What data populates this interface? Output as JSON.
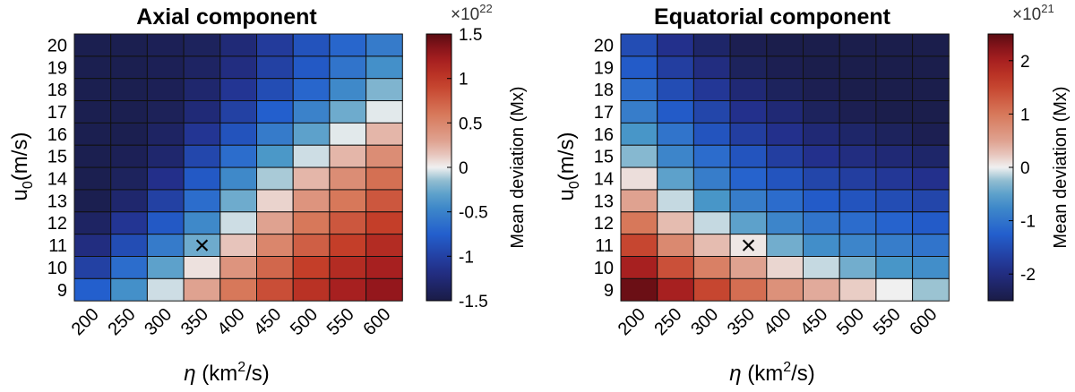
{
  "chart_data": [
    {
      "type": "heatmap",
      "title": "Axial component",
      "xlabel": "η (km²/s)",
      "xlabel_parts": {
        "symbol": "η",
        "unit_open": " (km",
        "unit_power": "2",
        "unit_close": "/s)"
      },
      "ylabel": "u0(m/s)",
      "ylabel_parts": {
        "base": "u",
        "sub": "0",
        "unit": "(m/s)"
      },
      "x_ticks": [
        "200",
        "250",
        "300",
        "350",
        "400",
        "450",
        "500",
        "550",
        "600"
      ],
      "y_ticks": [
        "20",
        "19",
        "18",
        "17",
        "16",
        "15",
        "14",
        "13",
        "12",
        "11",
        "10",
        "9"
      ],
      "colorbar": {
        "label": "Mean deviation (Mx)",
        "exponent_base": "×10",
        "exponent_power": "22",
        "vmin": -1.5,
        "vmax": 1.5,
        "ticks": [
          1.5,
          1,
          0.5,
          0,
          -0.5,
          -1,
          -1.5
        ],
        "tick_labels": [
          "1.5",
          "1",
          "0.5",
          "0",
          "-0.5",
          "-1",
          "-1.5"
        ]
      },
      "marker": {
        "symbol": "×",
        "x": "350",
        "y": "11"
      },
      "values": [
        [
          -1.45,
          -1.45,
          -1.42,
          -1.38,
          -1.25,
          -1.05,
          -0.85,
          -0.7,
          -0.55
        ],
        [
          -1.45,
          -1.45,
          -1.42,
          -1.35,
          -1.2,
          -1.0,
          -0.8,
          -0.6,
          -0.4
        ],
        [
          -1.45,
          -1.45,
          -1.42,
          -1.3,
          -1.1,
          -0.9,
          -0.7,
          -0.45,
          -0.2
        ],
        [
          -1.45,
          -1.45,
          -1.4,
          -1.25,
          -1.0,
          -0.75,
          -0.5,
          -0.25,
          -0.02
        ],
        [
          -1.45,
          -1.45,
          -1.35,
          -1.1,
          -0.85,
          -0.55,
          -0.3,
          -0.02,
          0.2
        ],
        [
          -1.45,
          -1.42,
          -1.3,
          -0.95,
          -0.65,
          -0.35,
          -0.05,
          0.2,
          0.45
        ],
        [
          -1.45,
          -1.38,
          -1.15,
          -0.8,
          -0.45,
          -0.1,
          0.2,
          0.45,
          0.65
        ],
        [
          -1.45,
          -1.3,
          -1.0,
          -0.65,
          -0.25,
          0.1,
          0.4,
          0.6,
          0.8
        ],
        [
          -1.35,
          -1.1,
          -0.8,
          -0.45,
          -0.05,
          0.3,
          0.6,
          0.8,
          0.95
        ],
        [
          -1.2,
          -0.9,
          -0.55,
          -0.25,
          0.15,
          0.5,
          0.75,
          0.95,
          1.1
        ],
        [
          -1.0,
          -0.65,
          -0.3,
          0.05,
          0.4,
          0.7,
          0.95,
          1.1,
          1.2
        ],
        [
          -0.75,
          -0.4,
          -0.05,
          0.3,
          0.6,
          0.85,
          1.05,
          1.2,
          1.3
        ]
      ]
    },
    {
      "type": "heatmap",
      "title": "Equatorial component",
      "xlabel": "η (km²/s)",
      "xlabel_parts": {
        "symbol": "η",
        "unit_open": " (km",
        "unit_power": "2",
        "unit_close": "/s)"
      },
      "ylabel": "u0(m/s)",
      "ylabel_parts": {
        "base": "u",
        "sub": "0",
        "unit": "(m/s)"
      },
      "x_ticks": [
        "200",
        "250",
        "300",
        "350",
        "400",
        "450",
        "500",
        "550",
        "600"
      ],
      "y_ticks": [
        "20",
        "19",
        "18",
        "17",
        "16",
        "15",
        "14",
        "13",
        "12",
        "11",
        "10",
        "9"
      ],
      "colorbar": {
        "label": "Mean deviation (Mx)",
        "exponent_base": "×10",
        "exponent_power": "21",
        "vmin": -2.5,
        "vmax": 2.5,
        "ticks": [
          2,
          1,
          0,
          -1,
          -2
        ],
        "tick_labels": [
          "2",
          "1",
          "0",
          "-1",
          "-2"
        ]
      },
      "marker": {
        "symbol": "×",
        "x": "350",
        "y": "11"
      },
      "values": [
        [
          -1.5,
          -1.9,
          -2.2,
          -2.4,
          -2.45,
          -2.45,
          -2.45,
          -2.45,
          -2.45
        ],
        [
          -1.3,
          -1.7,
          -2.0,
          -2.3,
          -2.4,
          -2.45,
          -2.45,
          -2.45,
          -2.45
        ],
        [
          -1.1,
          -1.5,
          -1.8,
          -2.1,
          -2.3,
          -2.4,
          -2.45,
          -2.45,
          -2.45
        ],
        [
          -0.9,
          -1.3,
          -1.6,
          -1.9,
          -2.1,
          -2.3,
          -2.4,
          -2.45,
          -2.45
        ],
        [
          -0.6,
          -1.0,
          -1.4,
          -1.7,
          -1.9,
          -2.1,
          -2.2,
          -2.3,
          -2.4
        ],
        [
          -0.3,
          -0.8,
          -1.1,
          -1.4,
          -1.7,
          -1.9,
          -2.0,
          -2.1,
          -2.2
        ],
        [
          0.1,
          -0.5,
          -0.9,
          -1.2,
          -1.4,
          -1.6,
          -1.7,
          -1.8,
          -1.9
        ],
        [
          0.5,
          -0.1,
          -0.6,
          -0.9,
          -1.1,
          -1.3,
          -1.4,
          -1.5,
          -1.6
        ],
        [
          1.0,
          0.3,
          -0.1,
          -0.5,
          -0.8,
          -1.0,
          -1.1,
          -1.2,
          -1.3
        ],
        [
          1.5,
          0.8,
          0.3,
          0.05,
          -0.4,
          -0.7,
          -0.8,
          -0.9,
          -1.0
        ],
        [
          2.0,
          1.4,
          0.9,
          0.5,
          0.15,
          -0.1,
          -0.4,
          -0.6,
          -0.7
        ],
        [
          2.4,
          2.0,
          1.5,
          1.1,
          0.7,
          0.4,
          0.2,
          0.0,
          -0.2
        ]
      ]
    }
  ]
}
